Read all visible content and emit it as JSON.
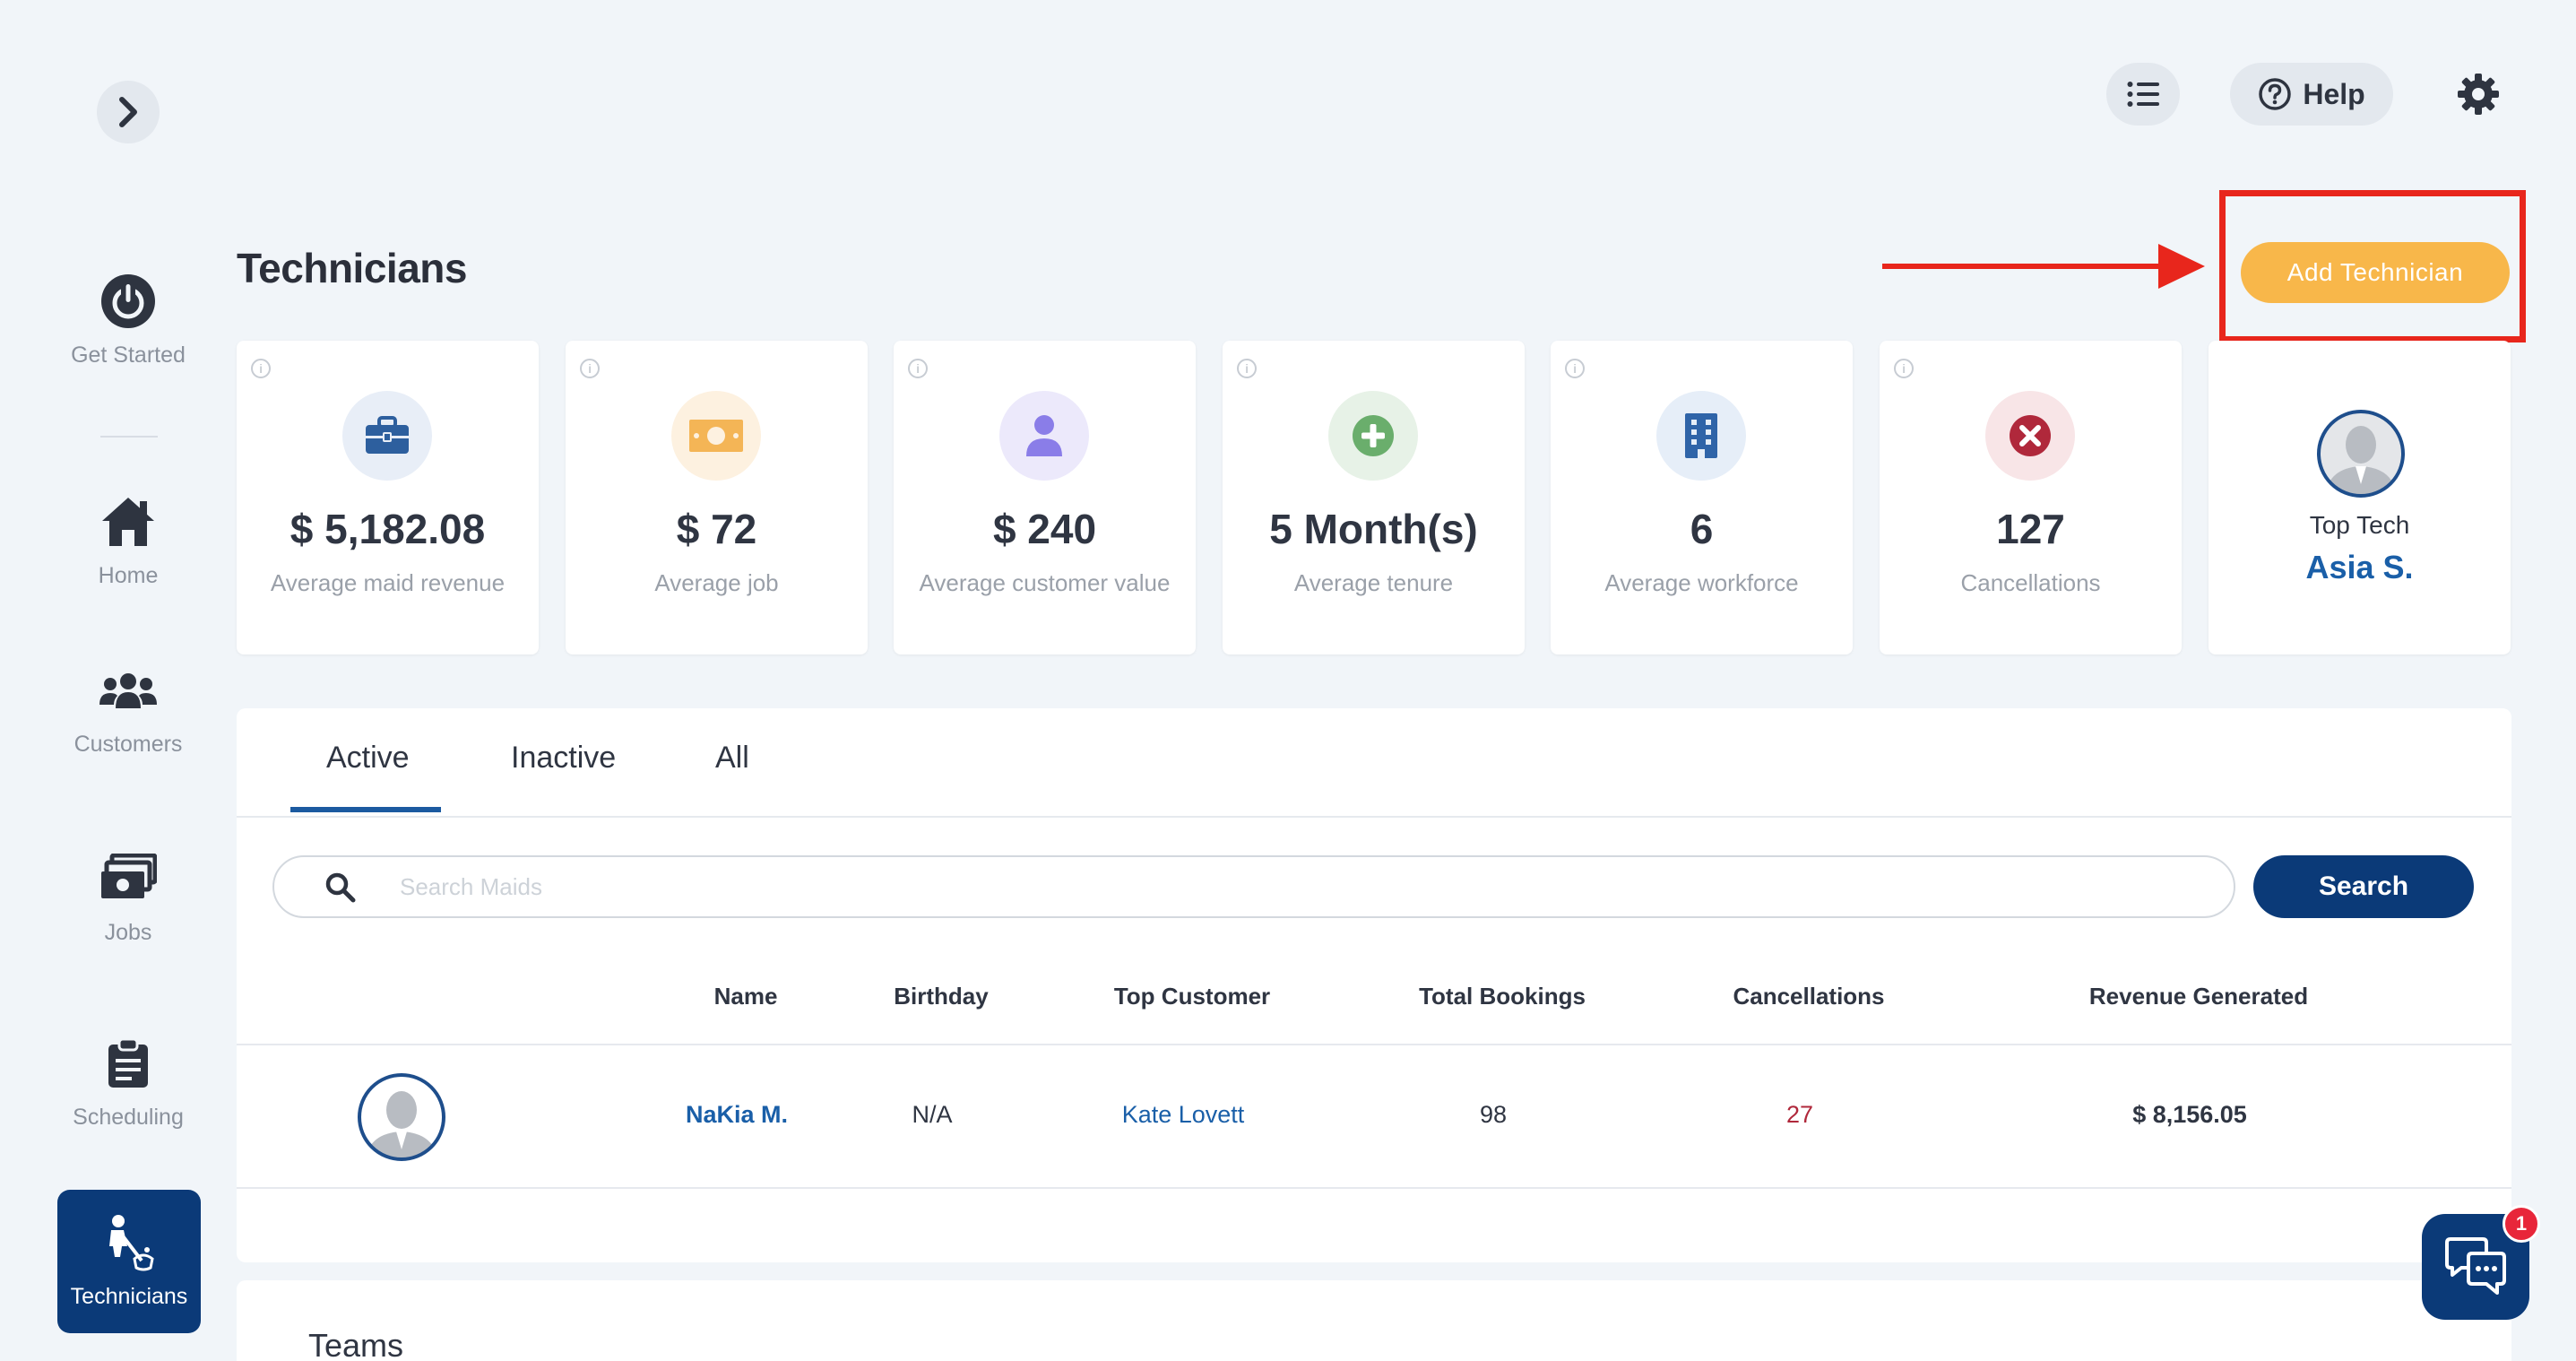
{
  "sidebar": {
    "items": [
      {
        "label": "Get Started",
        "icon": "power-icon"
      },
      {
        "label": "Home",
        "icon": "home-icon"
      },
      {
        "label": "Customers",
        "icon": "users-icon"
      },
      {
        "label": "Jobs",
        "icon": "money-stack-icon"
      },
      {
        "label": "Scheduling",
        "icon": "clipboard-icon"
      },
      {
        "label": "Technicians",
        "icon": "cleaner-icon",
        "active": true
      }
    ]
  },
  "topbar": {
    "help_label": "Help"
  },
  "page": {
    "title": "Technicians",
    "add_button": "Add Technician"
  },
  "stats": [
    {
      "value": "$ 5,182.08",
      "label": "Average maid revenue",
      "icon": "briefcase-icon",
      "bg": "#e8eef7",
      "color": "#2d5f9e"
    },
    {
      "value": "$ 72",
      "label": "Average job",
      "icon": "cash-icon",
      "bg": "#fdf1e0",
      "color": "#f4b556"
    },
    {
      "value": "$ 240",
      "label": "Average customer value",
      "icon": "user-icon",
      "bg": "#ece9fb",
      "color": "#8a7de8"
    },
    {
      "value": "5 Month(s)",
      "label": "Average tenure",
      "icon": "plus-circle-icon",
      "bg": "#e7f2e7",
      "color": "#6aae6c"
    },
    {
      "value": "6",
      "label": "Average workforce",
      "icon": "building-icon",
      "bg": "#e6eef8",
      "color": "#2f64a8"
    },
    {
      "value": "127",
      "label": "Cancellations",
      "icon": "x-circle-icon",
      "bg": "#f8e5e7",
      "color": "#b0283b"
    }
  ],
  "top_tech": {
    "label": "Top Tech",
    "name": "Asia S."
  },
  "tabs": [
    "Active",
    "Inactive",
    "All"
  ],
  "search": {
    "placeholder": "Search Maids",
    "button": "Search"
  },
  "table": {
    "headers": [
      "Name",
      "Birthday",
      "Top Customer",
      "Total Bookings",
      "Cancellations",
      "Revenue Generated"
    ],
    "rows": [
      {
        "name": "NaKia M.",
        "birthday": "N/A",
        "top_customer": "Kate Lovett",
        "total_bookings": "98",
        "cancellations": "27",
        "revenue": "$ 8,156.05"
      }
    ]
  },
  "teams": {
    "title": "Teams"
  },
  "chat": {
    "badge": "1"
  },
  "colors": {
    "primary": "#0b3a78",
    "accent": "#f8b74a",
    "annotation": "#e8261c",
    "link": "#1a5fa8",
    "danger": "#b0283b"
  }
}
